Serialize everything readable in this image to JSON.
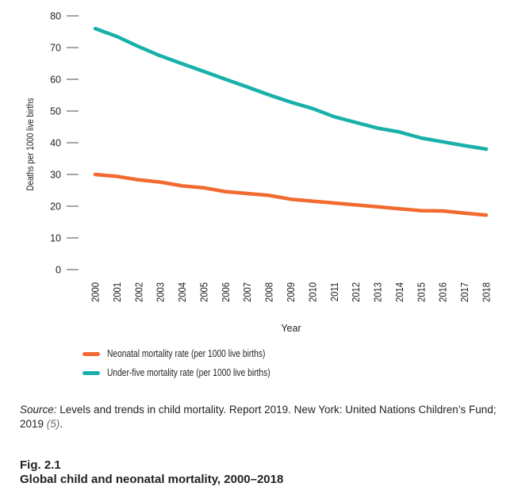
{
  "chart_data": {
    "type": "line",
    "x": [
      2000,
      2001,
      2002,
      2003,
      2004,
      2005,
      2006,
      2007,
      2008,
      2009,
      2010,
      2011,
      2012,
      2013,
      2014,
      2015,
      2016,
      2017,
      2018
    ],
    "series": [
      {
        "name": "Neonatal mortality rate (per 1000 live births)",
        "color": "#f26a30",
        "values": [
          30.0,
          29.4,
          28.3,
          27.6,
          26.4,
          25.8,
          24.6,
          24.0,
          23.4,
          22.2,
          21.6,
          21.0,
          20.4,
          19.8,
          19.2,
          18.6,
          18.5,
          17.8,
          17.2
        ]
      },
      {
        "name": "Under-five mortality rate (per 1000 live births)",
        "color": "#17b1aa",
        "values": [
          76.0,
          73.5,
          70.3,
          67.4,
          64.9,
          62.5,
          60.0,
          57.6,
          55.1,
          52.8,
          50.8,
          48.2,
          46.4,
          44.6,
          43.4,
          41.5,
          40.3,
          39.1,
          38.0
        ]
      }
    ],
    "xlabel": "Year",
    "ylabel": "Deaths per 1000 live births",
    "ylim": [
      0,
      80
    ],
    "yticks": [
      0,
      10,
      20,
      30,
      40,
      50,
      60,
      70,
      80
    ],
    "xticks": [
      "2000",
      "2001",
      "2002",
      "2003",
      "2004",
      "2005",
      "2006",
      "2007",
      "2008",
      "2009",
      "2010",
      "2011",
      "2012",
      "2013",
      "2014",
      "2015",
      "2016",
      "2017",
      "2018"
    ],
    "grid": false,
    "legend_position": "bottom-left"
  },
  "source": {
    "label": "Source:",
    "text": " Levels and trends in child mortality. Report 2019. New York: United Nations Children’s Fund; 2019 ",
    "ref": "(5)",
    "end": "."
  },
  "figure": {
    "number": "Fig. 2.1",
    "title": "Global child and neonatal mortality, 2000–2018"
  }
}
